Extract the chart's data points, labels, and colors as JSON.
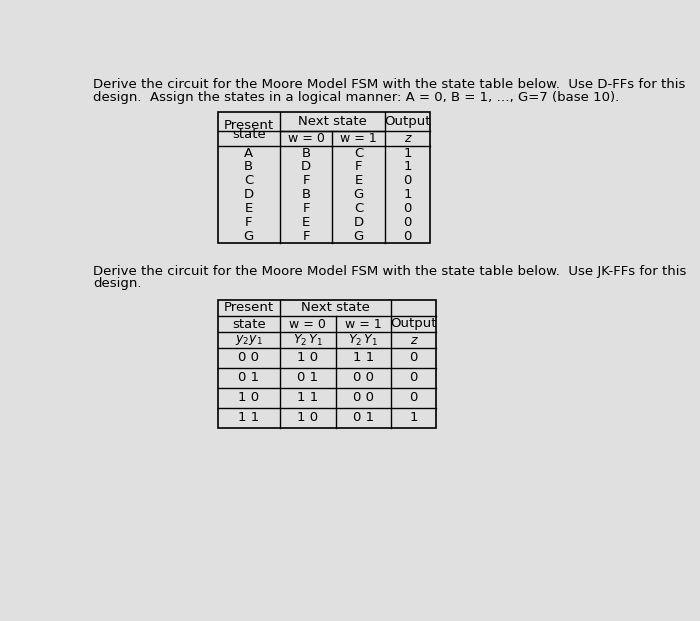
{
  "background_color": "#e0e0e0",
  "text_color": "#000000",
  "title1_line1": "Derive the circuit for the Moore Model FSM with the state table below.  Use D-FFs for this",
  "title1_line2": "design.  Assign the states in a logical manner: A = 0, B = 1, …, G=7 (base 10).",
  "title2_line1": "Derive the circuit for the Moore Model FSM with the state table below.  Use JK-FFs for this",
  "title2_line2": "design.",
  "t1_rows": [
    [
      "A",
      "B",
      "C",
      "1"
    ],
    [
      "B",
      "D",
      "F",
      "1"
    ],
    [
      "C",
      "F",
      "E",
      "0"
    ],
    [
      "D",
      "B",
      "G",
      "1"
    ],
    [
      "E",
      "F",
      "C",
      "0"
    ],
    [
      "F",
      "E",
      "D",
      "0"
    ],
    [
      "G",
      "F",
      "G",
      "0"
    ]
  ],
  "t2_rows": [
    [
      "0 0",
      "1 0",
      "1 1",
      "0"
    ],
    [
      "0 1",
      "0 1",
      "0 0",
      "0"
    ],
    [
      "1 0",
      "1 1",
      "0 0",
      "0"
    ],
    [
      "1 1",
      "1 0",
      "0 1",
      "1"
    ]
  ]
}
